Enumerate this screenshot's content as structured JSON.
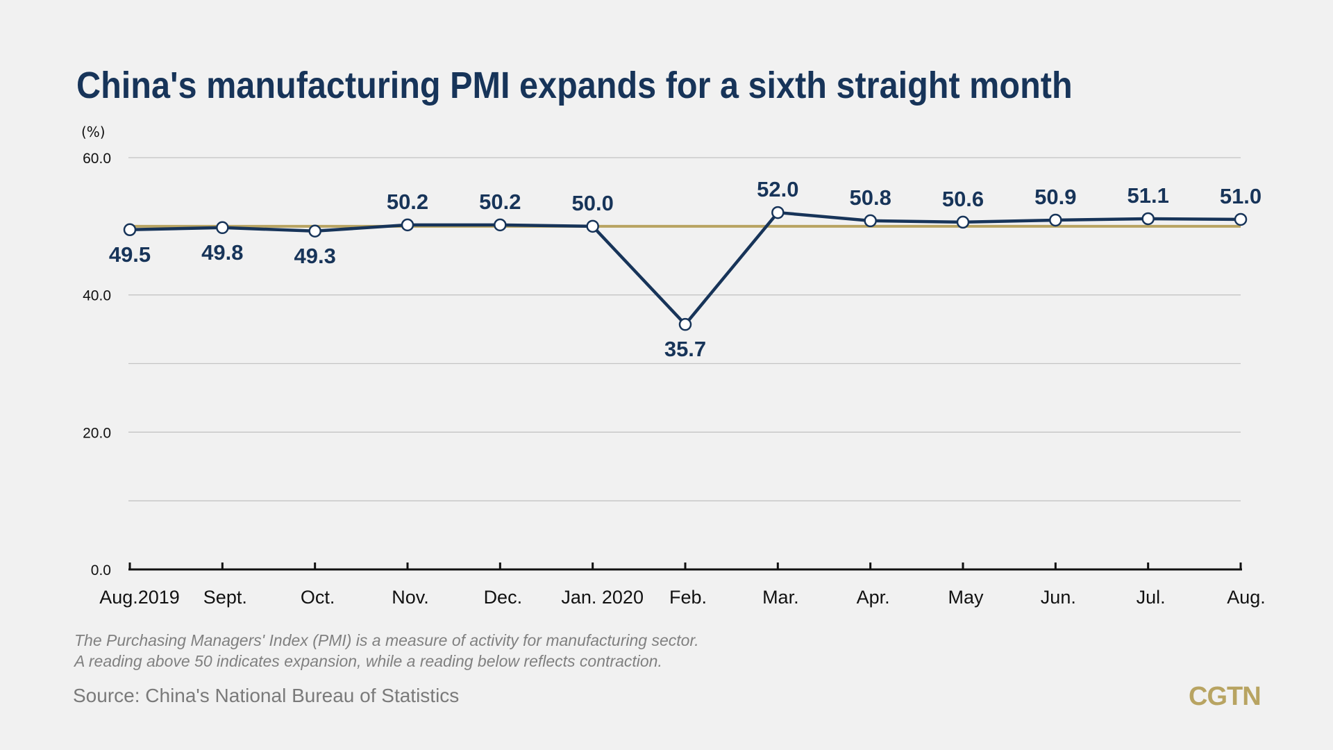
{
  "chart_data": {
    "type": "line",
    "title": "China's manufacturing PMI expands for a sixth straight month",
    "ylabel": "(%)",
    "xlabel": "",
    "categories": [
      "Aug.2019",
      "Sept.",
      "Oct.",
      "Nov.",
      "Dec.",
      "Jan. 2020",
      "Feb.",
      "Mar.",
      "Apr.",
      "May",
      "Jun.",
      "Jul.",
      "Aug."
    ],
    "values": [
      49.5,
      49.8,
      49.3,
      50.2,
      50.2,
      50.0,
      35.7,
      52.0,
      50.8,
      50.6,
      50.9,
      51.1,
      51.0
    ],
    "data_labels": [
      "49.5",
      "49.8",
      "49.3",
      "50.2",
      "50.2",
      "50.0",
      "35.7",
      "52.0",
      "50.8",
      "50.6",
      "50.9",
      "51.1",
      "51.0"
    ],
    "ylim": [
      0,
      60
    ],
    "yticks": [
      0,
      10,
      20,
      30,
      40,
      50,
      60
    ],
    "ytick_labels": {
      "0": "0.0",
      "20": "20.0",
      "40": "40.0",
      "60": "60.0"
    },
    "reference_line": 50,
    "grid": true,
    "colors": {
      "line": "#173459",
      "reference": "#b8a462",
      "marker_fill": "#ffffff",
      "grid": "#c4c4c4",
      "axis": "#111111"
    }
  },
  "footnote": [
    "The Purchasing Managers' Index (PMI) is a measure of activity for manufacturing sector.",
    "A reading above 50 indicates expansion, while a reading below reflects contraction."
  ],
  "source": "Source: China's National Bureau of Statistics",
  "logo": "CGTN"
}
